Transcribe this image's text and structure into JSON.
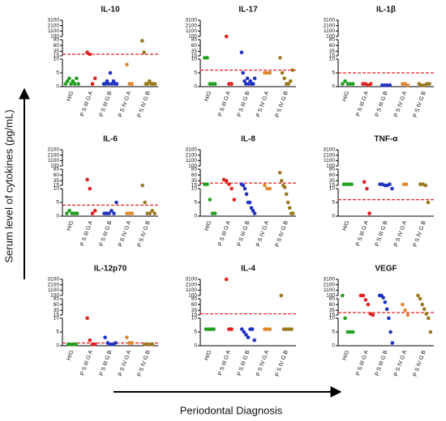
{
  "chart_data": [
    {
      "type": "dot",
      "title": "IL-10",
      "categories": [
        "H/G",
        "P S III G A",
        "P S III G B",
        "P S IV G A",
        "P S IV G B"
      ],
      "colors": [
        "#22a022",
        "#e02020",
        "#2233c0",
        "#e08a30",
        "#9a7a20"
      ],
      "values": [
        [
          1,
          2,
          3,
          1,
          2,
          1,
          3,
          1
        ],
        [
          30,
          22,
          1,
          3
        ],
        [
          1,
          1,
          2,
          1,
          5,
          1,
          2,
          1,
          1
        ],
        [
          8,
          1,
          1
        ],
        [
          80,
          30,
          1,
          1,
          2,
          1,
          1,
          1
        ]
      ],
      "reference_line": 22,
      "ysegments": [
        [
          0,
          10
        ],
        [
          15,
          85
        ],
        [
          100,
          3100
        ]
      ],
      "yticks": [
        0,
        5,
        10,
        15,
        35,
        60,
        85,
        100,
        1100,
        2100,
        3100
      ]
    },
    {
      "type": "dot",
      "title": "IL-17",
      "categories": [
        "H/G",
        "P S III G A",
        "P S III G B",
        "P S IV G A",
        "P S IV G B"
      ],
      "colors": [
        "#22a022",
        "#e02020",
        "#2233c0",
        "#e08a30",
        "#9a7a20"
      ],
      "values": [
        [
          12,
          12,
          1,
          1,
          1
        ],
        [
          100,
          1,
          1
        ],
        [
          30,
          5,
          2,
          1,
          3,
          1,
          2,
          1,
          1,
          3
        ],
        [
          5,
          5,
          5
        ],
        [
          12,
          5,
          3,
          1,
          1,
          2,
          6
        ]
      ],
      "reference_line": 6,
      "ysegments": [
        [
          0,
          10
        ],
        [
          15,
          85
        ],
        [
          100,
          3100
        ]
      ],
      "yticks": [
        0,
        5,
        10,
        15,
        35,
        60,
        85,
        100,
        1100,
        2100,
        3100
      ]
    },
    {
      "type": "dot",
      "title": "IL-1β",
      "categories": [
        "H/G",
        "P S III G A",
        "P S III G B",
        "P S IV G A",
        "P S IV G B"
      ],
      "colors": [
        "#22a022",
        "#e02020",
        "#2233c0",
        "#e08a30",
        "#9a7a20"
      ],
      "values": [
        [
          1,
          2,
          1,
          1,
          1
        ],
        [
          1,
          1,
          0.5,
          1
        ],
        [
          0.5,
          0.5,
          0.5,
          0.5
        ],
        [
          1,
          1,
          0.5
        ],
        [
          1,
          0.5,
          0.5,
          1,
          1
        ]
      ],
      "reference_line": 5,
      "ysegments": [
        [
          0,
          10
        ],
        [
          15,
          85
        ],
        [
          100,
          3100
        ]
      ],
      "yticks": [
        0,
        5,
        10,
        15,
        35,
        60,
        85,
        100,
        1100,
        2100,
        3100
      ]
    },
    {
      "type": "dot",
      "title": "IL-6",
      "categories": [
        "H/G",
        "P S III G A",
        "P S III G B",
        "P S IV G A",
        "P S IV G B"
      ],
      "colors": [
        "#22a022",
        "#e02020",
        "#2233c0",
        "#e08a30",
        "#9a7a20"
      ],
      "values": [
        [
          1,
          2,
          1,
          1,
          1
        ],
        [
          40,
          10,
          1,
          2
        ],
        [
          1,
          1,
          1,
          2,
          1,
          5
        ],
        [
          1,
          1,
          1
        ],
        [
          15,
          5,
          1,
          1,
          2,
          1
        ]
      ],
      "reference_line": 4,
      "ysegments": [
        [
          0,
          10
        ],
        [
          15,
          85
        ],
        [
          100,
          3100
        ]
      ],
      "yticks": [
        0,
        5,
        10,
        15,
        35,
        60,
        85,
        100,
        1100,
        2100,
        3100
      ]
    },
    {
      "type": "dot",
      "title": "IL-8",
      "categories": [
        "H/G",
        "P S III G A",
        "P S III G B",
        "P S IV G A",
        "P S IV G B"
      ],
      "colors": [
        "#22a022",
        "#e02020",
        "#2233c0",
        "#e08a30",
        "#9a7a20"
      ],
      "values": [
        [
          20,
          20,
          6,
          1,
          1
        ],
        [
          40,
          35,
          20,
          10,
          6
        ],
        [
          20,
          15,
          10,
          8,
          5,
          5,
          3,
          2,
          1
        ],
        [
          15,
          10,
          10
        ],
        [
          70,
          35,
          15,
          12,
          8,
          5,
          3,
          1,
          1
        ]
      ],
      "reference_line": 25,
      "ysegments": [
        [
          0,
          10
        ],
        [
          15,
          85
        ],
        [
          100,
          3100
        ]
      ],
      "yticks": [
        0,
        5,
        10,
        15,
        35,
        60,
        85,
        100,
        1100,
        2100,
        3100
      ]
    },
    {
      "type": "dot",
      "title": "TNF-α",
      "categories": [
        "H/G",
        "P S III G A",
        "P S III G B",
        "P S IV G A",
        "P S IV G B"
      ],
      "colors": [
        "#22a022",
        "#e02020",
        "#2233c0",
        "#e08a30",
        "#9a7a20"
      ],
      "values": [
        [
          20,
          20,
          20,
          20
        ],
        [
          30,
          10,
          1
        ],
        [
          20,
          20,
          15,
          15,
          20,
          10
        ],
        [
          20,
          20
        ],
        [
          20,
          20,
          15,
          5
        ]
      ],
      "reference_line": 6,
      "ysegments": [
        [
          0,
          10
        ],
        [
          15,
          85
        ],
        [
          100,
          3100
        ]
      ],
      "yticks": [
        0,
        5,
        10,
        15,
        35,
        60,
        85,
        100,
        1100,
        2100,
        3100
      ]
    },
    {
      "type": "dot",
      "title": "IL-12p70",
      "categories": [
        "H/G",
        "P S III G A",
        "P S III G B",
        "P S IV G A",
        "P S IV G B"
      ],
      "colors": [
        "#22a022",
        "#e02020",
        "#2233c0",
        "#e08a30",
        "#9a7a20"
      ],
      "values": [
        [
          0.5,
          0.5,
          0.5,
          0.5
        ],
        [
          10,
          2,
          0.5,
          0.5
        ],
        [
          3,
          1,
          0.5,
          0.5,
          1
        ],
        [
          3,
          1,
          1
        ],
        [
          0.5,
          0.5,
          0.5,
          0.5
        ]
      ],
      "reference_line": 1,
      "ysegments": [
        [
          0,
          10
        ],
        [
          15,
          85
        ],
        [
          100,
          3100
        ]
      ],
      "yticks": [
        0,
        5,
        10,
        15,
        35,
        60,
        85,
        100,
        1100,
        2100,
        3100
      ]
    },
    {
      "type": "dot",
      "title": "IL-4",
      "categories": [
        "H/G",
        "P S III G A",
        "P S III G B",
        "P S IV G A",
        "P S IV G B"
      ],
      "colors": [
        "#22a022",
        "#e02020",
        "#2233c0",
        "#e08a30",
        "#9a7a20"
      ],
      "values": [
        [
          6,
          6,
          6,
          6
        ],
        [
          3100,
          6,
          6
        ],
        [
          6,
          5,
          4,
          3,
          6,
          6,
          2
        ],
        [
          6,
          6,
          6
        ],
        [
          100,
          6,
          6,
          6,
          6
        ]
      ],
      "reference_line": 20,
      "ysegments": [
        [
          0,
          10
        ],
        [
          15,
          85
        ],
        [
          100,
          3100
        ]
      ],
      "yticks": [
        0,
        5,
        10,
        15,
        35,
        60,
        85,
        100,
        1100,
        2100,
        3100
      ]
    },
    {
      "type": "dot",
      "title": "VEGF",
      "categories": [
        "H/G",
        "P S III G A",
        "P S III G B",
        "P S IV G A",
        "P S IV G B"
      ],
      "colors": [
        "#22a022",
        "#e02020",
        "#2233c0",
        "#e08a30",
        "#9a7a20"
      ],
      "values": [
        [
          100,
          10,
          5,
          5,
          5
        ],
        [
          100,
          100,
          80,
          60,
          20,
          15
        ],
        [
          100,
          100,
          90,
          70,
          40,
          10,
          5,
          1
        ],
        [
          60,
          35,
          15
        ],
        [
          100,
          85,
          60,
          40,
          20,
          10,
          5
        ]
      ],
      "reference_line": 25,
      "ysegments": [
        [
          0,
          10
        ],
        [
          15,
          85
        ],
        [
          100,
          3100
        ]
      ],
      "yticks": [
        0,
        5,
        10,
        15,
        35,
        60,
        85,
        100,
        1100,
        2100,
        3100
      ]
    }
  ],
  "y_axis_label": "Serum level of cytokines (pg/mL)",
  "x_axis_label": "Periodontal Diagnosis"
}
